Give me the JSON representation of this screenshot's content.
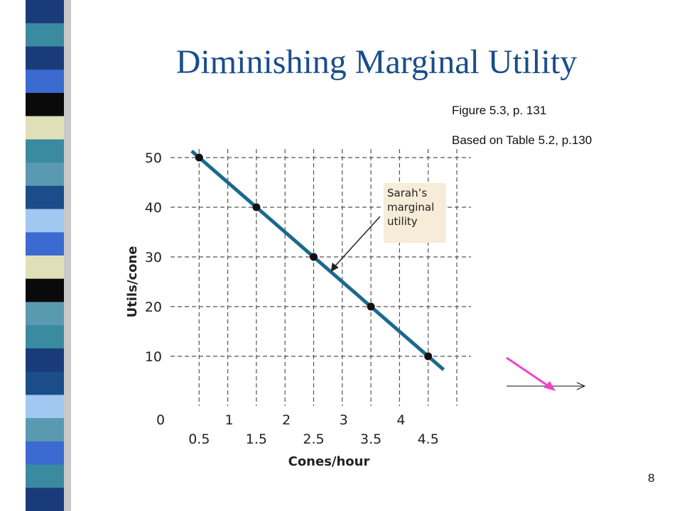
{
  "slide": {
    "title": "Diminishing Marginal Utility",
    "references": [
      "Figure 5.3, p. 131",
      "Based on Table 5.2, p.130"
    ],
    "page_number": "8"
  },
  "colors": {
    "title": "#1a4d8a",
    "line": "#1a6a8e",
    "annotation_bg": "#f6ecd8",
    "pink_arrow": "#ee44cc",
    "stripes": [
      "#3a8aa0",
      "#1a3b7a",
      "#3b6bd0",
      "#0a0a0a",
      "#e0e0b8",
      "#5a9ab0",
      "#1a4d8a",
      "#a0c8f0"
    ]
  },
  "chart_data": {
    "type": "line",
    "title": "",
    "xlabel": "Cones/hour",
    "ylabel": "Utils/cone",
    "xlim": [
      0,
      5
    ],
    "ylim": [
      0,
      50
    ],
    "x_tick_labels_upper": [
      "0",
      "1",
      "2",
      "3",
      "4"
    ],
    "x_tick_labels_lower": [
      "0.5",
      "1.5",
      "2.5",
      "3.5",
      "4.5"
    ],
    "y_tick_labels": [
      "10",
      "20",
      "30",
      "40",
      "50"
    ],
    "grid": "dashed",
    "series": [
      {
        "name": "Sarah's marginal utility",
        "x": [
          0.5,
          1.5,
          2.5,
          3.5,
          4.5
        ],
        "y": [
          50,
          40,
          30,
          20,
          10
        ]
      }
    ],
    "annotation": {
      "lines": [
        "Sarah’s",
        "marginal",
        "utility"
      ],
      "points_to": [
        2.8,
        27
      ]
    }
  }
}
